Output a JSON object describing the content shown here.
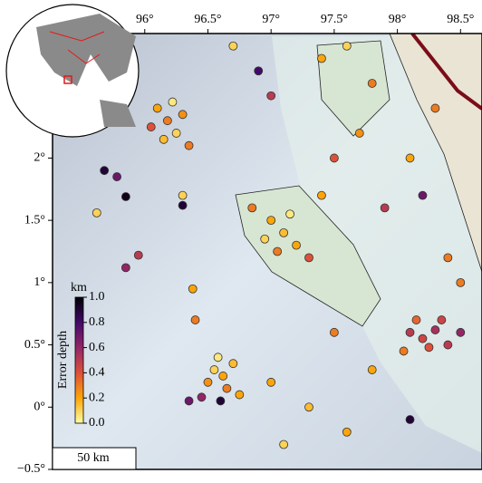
{
  "chart_data": {
    "type": "scatter",
    "colormap": "inferno_r",
    "xlim": [
      95.27,
      98.67
    ],
    "ylim": [
      -0.5,
      3.0
    ],
    "xticks": [
      {
        "value": 96,
        "label": "96°"
      },
      {
        "value": 96.5,
        "label": "96.5°"
      },
      {
        "value": 97,
        "label": "97°"
      },
      {
        "value": 97.5,
        "label": "97.5°"
      },
      {
        "value": 98,
        "label": "98°"
      },
      {
        "value": 98.5,
        "label": "98.5°"
      }
    ],
    "yticks": [
      {
        "value": -0.5,
        "label": "−0.5°"
      },
      {
        "value": 0,
        "label": "0°"
      },
      {
        "value": 0.5,
        "label": "0.5°"
      },
      {
        "value": 1,
        "label": "1°"
      },
      {
        "value": 1.5,
        "label": "1.5°"
      },
      {
        "value": 2,
        "label": "2°"
      }
    ],
    "colorbar": {
      "title": "Error depth",
      "unit": "km",
      "lim": [
        0,
        1
      ],
      "ticks": [
        {
          "value": 0,
          "label": "0.0"
        },
        {
          "value": 0.2,
          "label": "0.2"
        },
        {
          "value": 0.4,
          "label": "0.4"
        },
        {
          "value": 0.6,
          "label": "0.6"
        },
        {
          "value": 0.8,
          "label": "0.8"
        },
        {
          "value": 1,
          "label": "1.0"
        }
      ]
    },
    "scale_bar": "50 km",
    "x": [
      96.1,
      96.18,
      96.25,
      96.3,
      96.15,
      96.22,
      96.35,
      96.05,
      95.68,
      95.78,
      95.62,
      95.85,
      95.95,
      95.85,
      96.3,
      96.3,
      97.0,
      97.1,
      97.05,
      96.95,
      97.2,
      97.15,
      96.85,
      97.3,
      96.55,
      96.62,
      96.7,
      96.58,
      96.65,
      96.5,
      96.75,
      96.45,
      96.6,
      96.35,
      96.4,
      96.38,
      98.1,
      98.2,
      98.3,
      98.25,
      98.15,
      98.4,
      98.05,
      98.35,
      98.5,
      96.7,
      96.9,
      97.0,
      97.4,
      97.6,
      97.8,
      97.7,
      98.1,
      97.5,
      98.3,
      97.5,
      97.8,
      97.3,
      97.6,
      97.1,
      98.1,
      97.0,
      98.4,
      97.9,
      97.4,
      98.2,
      98.5
    ],
    "y": [
      2.4,
      2.3,
      2.2,
      2.35,
      2.15,
      2.45,
      2.1,
      2.25,
      1.9,
      1.85,
      1.56,
      1.69,
      1.22,
      1.12,
      1.62,
      1.7,
      1.5,
      1.4,
      1.25,
      1.35,
      1.3,
      1.55,
      1.6,
      1.2,
      0.3,
      0.25,
      0.35,
      0.4,
      0.15,
      0.2,
      0.1,
      0.08,
      0.05,
      0.05,
      0.7,
      0.95,
      0.6,
      0.55,
      0.62,
      0.48,
      0.7,
      0.5,
      0.45,
      0.7,
      0.6,
      2.9,
      2.7,
      2.5,
      2.8,
      2.9,
      2.6,
      2.2,
      2.0,
      2.0,
      2.4,
      0.6,
      0.3,
      0.0,
      -0.2,
      -0.3,
      -0.1,
      0.2,
      1.2,
      1.6,
      1.7,
      1.7,
      1.0
    ],
    "values": [
      0.2,
      0.3,
      0.1,
      0.25,
      0.15,
      0.05,
      0.3,
      0.4,
      0.9,
      0.7,
      0.1,
      0.95,
      0.5,
      0.6,
      0.9,
      0.1,
      0.2,
      0.15,
      0.3,
      0.1,
      0.2,
      0.05,
      0.3,
      0.4,
      0.1,
      0.2,
      0.15,
      0.05,
      0.3,
      0.25,
      0.2,
      0.6,
      0.9,
      0.7,
      0.3,
      0.2,
      0.5,
      0.45,
      0.55,
      0.4,
      0.35,
      0.5,
      0.3,
      0.45,
      0.6,
      0.1,
      0.8,
      0.5,
      0.2,
      0.1,
      0.3,
      0.25,
      0.2,
      0.4,
      0.3,
      0.3,
      0.2,
      0.15,
      0.2,
      0.1,
      0.9,
      0.2,
      0.3,
      0.5,
      0.2,
      0.7,
      0.3
    ]
  }
}
